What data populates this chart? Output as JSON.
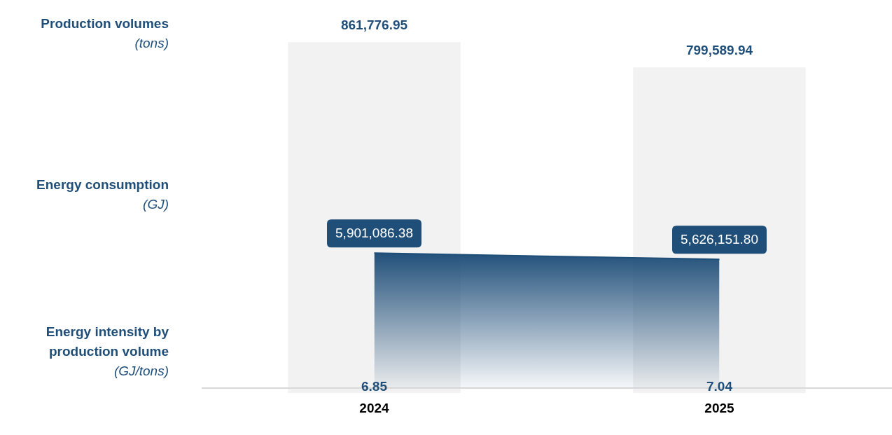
{
  "chart_data": [
    {
      "type": "bar",
      "title": "Production volumes (tons)",
      "categories": [
        "2024",
        "2025"
      ],
      "color": "#f2f2f2",
      "values": [
        861776.95,
        799589.94
      ],
      "value_labels": [
        "861,776.95",
        "799,589.94"
      ],
      "tick_labels": false,
      "legend": false
    },
    {
      "type": "area",
      "title": "Energy consumption (GJ)",
      "categories": [
        "2024",
        "2025"
      ],
      "color": "#1f4e79",
      "values": [
        5901086.38,
        5626151.8
      ],
      "value_labels": [
        "5,901,086.38",
        "5,626,151.80"
      ],
      "tick_labels": "x",
      "legend": false
    },
    {
      "type": "other",
      "title": "Energy intensity by production volume (GJ/tons)",
      "categories": [
        null,
        null
      ],
      "color": "#1f4e79",
      "values": [
        6.85,
        7.04
      ],
      "data_labels": true
    }
  ]
}
